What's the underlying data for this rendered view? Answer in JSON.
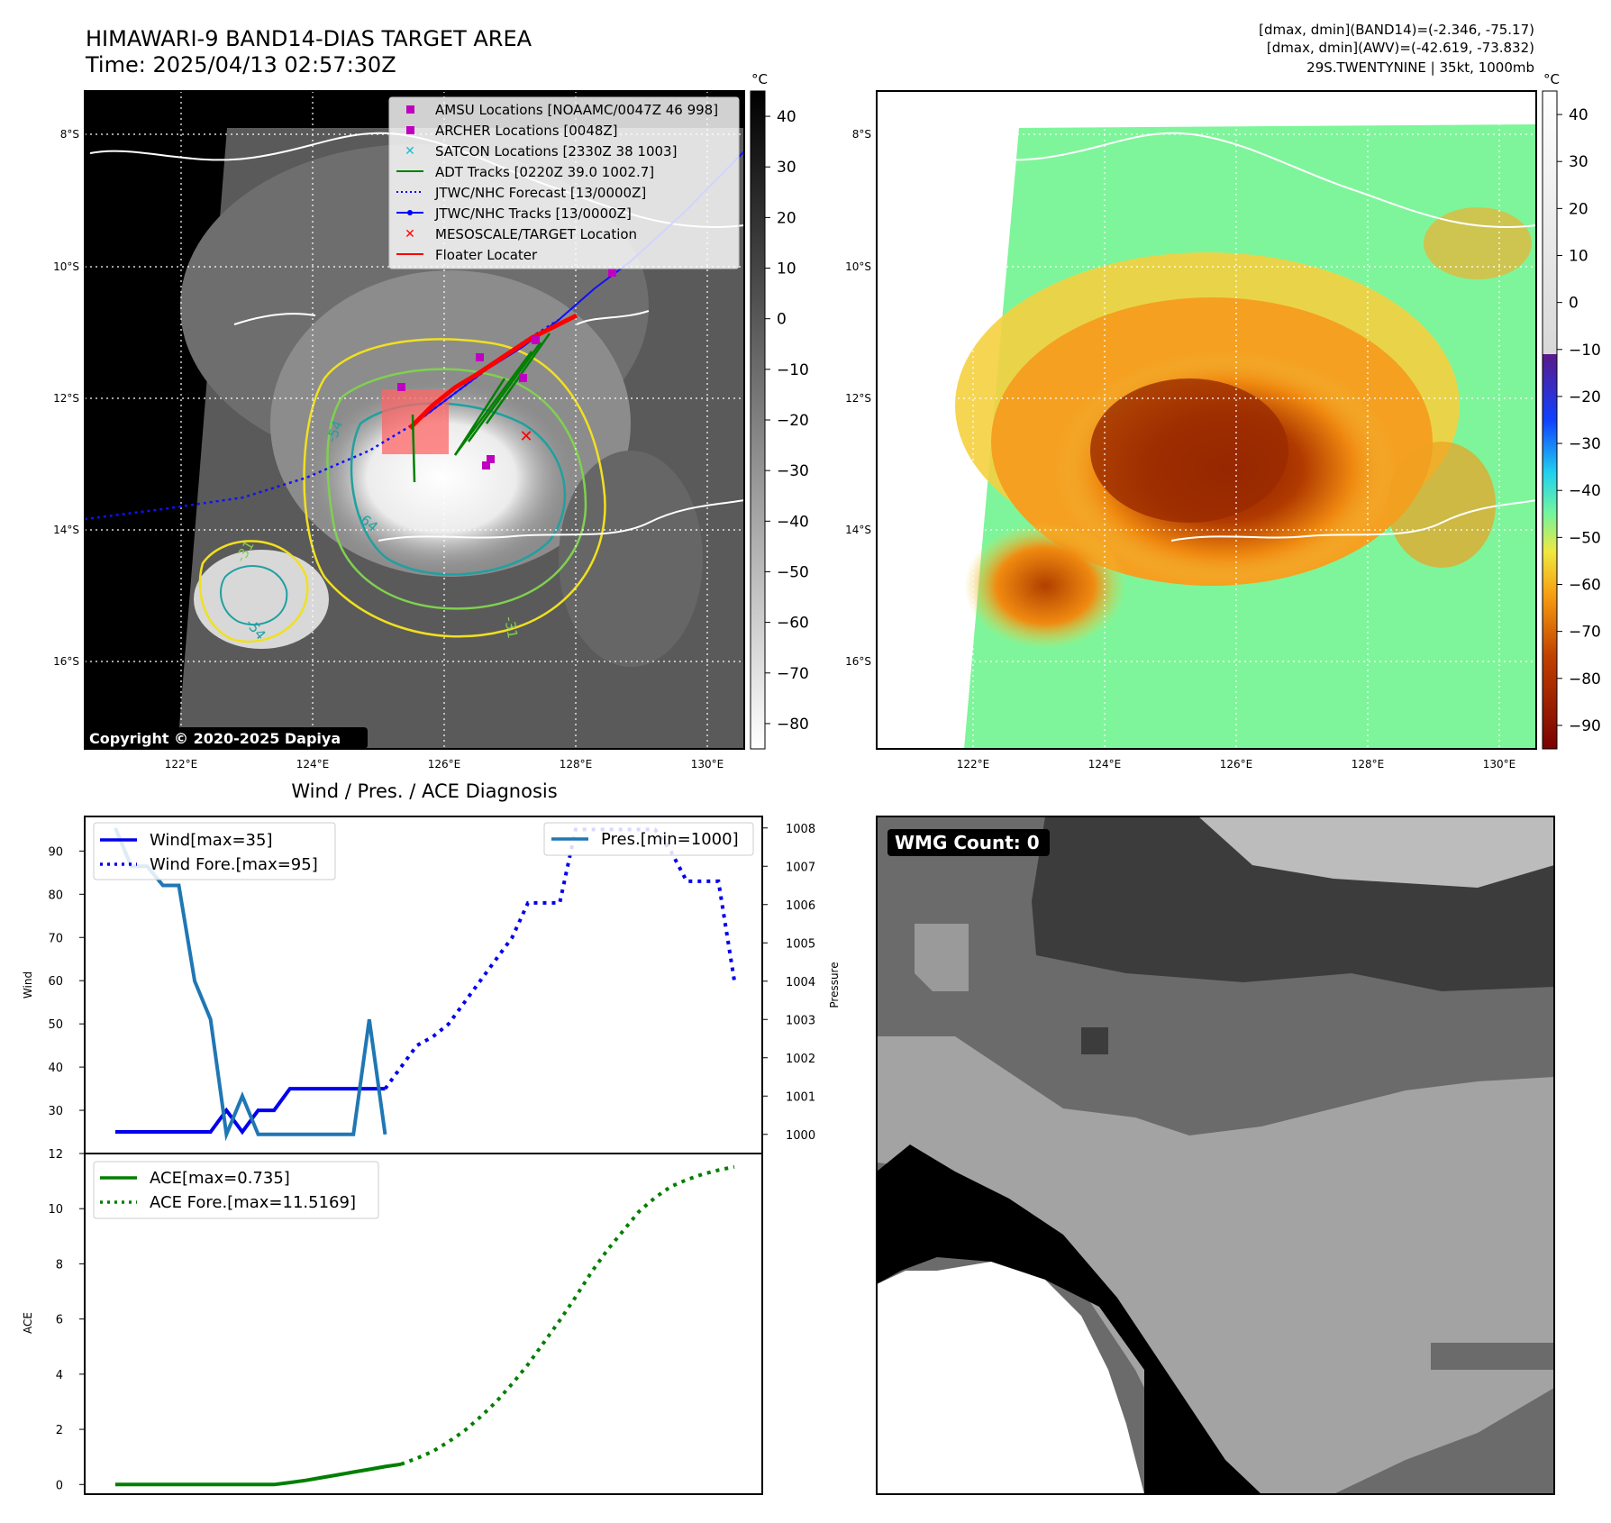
{
  "header": {
    "title_line1": "HIMAWARI-9 BAND14-DIAS TARGET AREA",
    "title_line2": "Time: 2025/04/13 02:57:30Z",
    "stats_line1": "[dmax, dmin](BAND14)=(-2.346, -75.17)",
    "stats_line2": "[dmax, dmin](AWV)=(-42.619, -73.832)",
    "stats_line3": "29S.TWENTYNINE | 35kt, 1000mb"
  },
  "map_axes": {
    "lon_labels": [
      "122°E",
      "124°E",
      "126°E",
      "128°E",
      "130°E"
    ],
    "lat_labels": [
      "8°S",
      "10°S",
      "12°S",
      "14°S",
      "16°S"
    ]
  },
  "ir_panel": {
    "colorbar_unit": "°C",
    "colorbar_ticks": [
      "40",
      "30",
      "20",
      "10",
      "0",
      "−10",
      "−20",
      "−30",
      "−40",
      "−50",
      "−60",
      "−70",
      "−80"
    ],
    "copyright": "Copyright © 2020-2025 Dapiya",
    "contour_labels": [
      "-54",
      "-64",
      "-31",
      "-54",
      "-31"
    ],
    "legend": [
      {
        "label": "AMSU Locations [NOAAMC/0047Z 46 998]",
        "marker": "square",
        "color": "#c000c0"
      },
      {
        "label": "ARCHER Locations [0048Z]",
        "marker": "square",
        "color": "#c000c0"
      },
      {
        "label": "SATCON Locations [2330Z 38 1003]",
        "marker": "x",
        "color": "#17becf"
      },
      {
        "label": "ADT Tracks [0220Z 39.0 1002.7]",
        "marker": "line",
        "color": "#008000"
      },
      {
        "label": "JTWC/NHC Forecast [13/0000Z]",
        "marker": "dotted",
        "color": "#0000ff"
      },
      {
        "label": "JTWC/NHC Tracks [13/0000Z]",
        "marker": "line-dot",
        "color": "#0000ff"
      },
      {
        "label": "MESOSCALE/TARGET Location",
        "marker": "x",
        "color": "#ff0000"
      },
      {
        "label": "Floater Locater",
        "marker": "line",
        "color": "#ff0000"
      }
    ]
  },
  "awv_panel": {
    "colorbar_unit": "°C",
    "colorbar_ticks": [
      "40",
      "30",
      "20",
      "10",
      "0",
      "−10",
      "−20",
      "−30",
      "−40",
      "−50",
      "−60",
      "−70",
      "−80",
      "−90"
    ]
  },
  "wmg_panel": {
    "label": "WMG Count: 0"
  },
  "chart_data": [
    {
      "type": "line",
      "title": "Wind / Pres. / ACE Diagnosis",
      "ylabel": "Wind",
      "ylabel_right": "Pressure",
      "ylim": [
        20,
        98
      ],
      "ylim_right": [
        999.5,
        1008.3
      ],
      "yticks": [
        30,
        40,
        50,
        60,
        70,
        80,
        90
      ],
      "yticks_right": [
        1000,
        1001,
        1002,
        1003,
        1004,
        1005,
        1006,
        1007,
        1008
      ],
      "x": [
        0,
        1,
        2,
        3,
        4,
        5,
        6,
        7,
        8,
        9,
        10,
        11,
        12,
        13,
        14,
        15,
        16,
        17,
        18,
        19,
        20,
        21,
        22,
        23,
        24,
        25,
        26,
        27,
        28,
        29,
        30,
        31,
        32,
        33,
        34,
        35,
        36,
        37,
        38,
        39
      ],
      "series": [
        {
          "name": "Wind[max=35]",
          "axis": "left",
          "color": "#0000ee",
          "style": "solid",
          "x": [
            0,
            1,
            2,
            3,
            4,
            5,
            6,
            7,
            8,
            9,
            10,
            11,
            12,
            13,
            14,
            15,
            16,
            17
          ],
          "values": [
            25,
            25,
            25,
            25,
            25,
            25,
            25,
            30,
            25,
            30,
            30,
            35,
            35,
            35,
            35,
            35,
            35,
            35
          ]
        },
        {
          "name": "Wind Fore.[max=95]",
          "axis": "left",
          "color": "#0000ee",
          "style": "dotted",
          "x": [
            17,
            18,
            19,
            20,
            21,
            22,
            23,
            24,
            25,
            26,
            27,
            28,
            29,
            30,
            31,
            32,
            33,
            34,
            35,
            36,
            37,
            38,
            39
          ],
          "values": [
            35,
            40,
            45,
            47,
            50,
            55,
            60,
            65,
            70,
            78,
            78,
            78,
            95,
            95,
            95,
            95,
            95,
            95,
            90,
            83,
            83,
            83,
            60
          ]
        },
        {
          "name": "Pres.[min=1000]",
          "axis": "right",
          "color": "#1f77b4",
          "style": "solid",
          "x": [
            0,
            1,
            2,
            3,
            4,
            5,
            6,
            7,
            8,
            9,
            10,
            11,
            12,
            13,
            14,
            15,
            16,
            17
          ],
          "values": [
            1008,
            1007,
            1007,
            1006.5,
            1006.5,
            1004,
            1003,
            1000,
            1001,
            1000,
            1000,
            1000,
            1000,
            1000,
            1000,
            1000,
            1003,
            1000
          ]
        }
      ]
    },
    {
      "type": "line",
      "ylabel": "ACE",
      "ylim": [
        -0.35,
        12
      ],
      "yticks": [
        0,
        2,
        4,
        6,
        8,
        10,
        12
      ],
      "series": [
        {
          "name": "ACE[max=0.735]",
          "color": "#007f00",
          "style": "solid",
          "x": [
            0,
            1,
            2,
            3,
            4,
            5,
            6,
            7,
            8,
            9,
            10,
            11,
            12,
            13,
            14,
            15,
            16,
            17,
            18
          ],
          "values": [
            0,
            0,
            0,
            0,
            0,
            0,
            0,
            0,
            0,
            0,
            0,
            0.07,
            0.15,
            0.25,
            0.35,
            0.45,
            0.55,
            0.65,
            0.735
          ]
        },
        {
          "name": "ACE Fore.[max=11.5169]",
          "color": "#007f00",
          "style": "dotted",
          "x": [
            18,
            19,
            20,
            21,
            22,
            23,
            24,
            25,
            26,
            27,
            28,
            29,
            30,
            31,
            32,
            33,
            34,
            35,
            36,
            37,
            38,
            39
          ],
          "values": [
            0.735,
            0.95,
            1.2,
            1.55,
            1.95,
            2.45,
            3.0,
            3.65,
            4.35,
            5.15,
            5.95,
            6.8,
            7.7,
            8.5,
            9.2,
            9.9,
            10.4,
            10.8,
            11.05,
            11.25,
            11.4,
            11.5169
          ]
        }
      ]
    }
  ]
}
